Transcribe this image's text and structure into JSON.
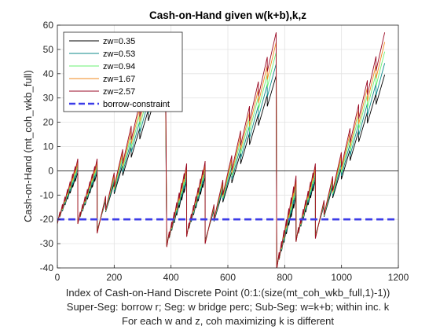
{
  "chart_data": {
    "type": "line",
    "title": "Cash-on-Hand given w(k+b),k,z",
    "xlabel_lines": [
      "Index of Cash-on-Hand Discrete Point (0:1:(size(mt_coh_wkb_full,1)-1))",
      "Super-Seg: borrow r; Seg: w bridge perc; Sub-Seg: w=k+b; within inc. k",
      "For each w and z, coh maximizing k is different"
    ],
    "ylabel": "Cash-on-Hand (mt_coh_wkb_full)",
    "xlim": [
      0,
      1200
    ],
    "ylim": [
      -40,
      60
    ],
    "xticks": [
      0,
      200,
      400,
      600,
      800,
      1000,
      1200
    ],
    "yticks": [
      -40,
      -30,
      -20,
      -10,
      0,
      10,
      20,
      30,
      40,
      50,
      60
    ],
    "grid": true,
    "legend_position": "top-left",
    "zero_line": 0,
    "segment_inner_count": 8,
    "borrow_constraint": -20,
    "series": [
      {
        "name": "zw=0.35",
        "color": "#000000",
        "scale": 0.78
      },
      {
        "name": "zw=0.53",
        "color": "#0d8a8a",
        "scale": 0.84
      },
      {
        "name": "zw=0.94",
        "color": "#69f071",
        "scale": 0.9
      },
      {
        "name": "zw=1.67",
        "color": "#f28a1e",
        "scale": 0.95
      },
      {
        "name": "zw=2.57",
        "color": "#9a0a24",
        "scale": 1.0
      }
    ],
    "segments": [
      {
        "x_start": 0,
        "x_end": 72,
        "y_start": -20,
        "y_end": 5
      },
      {
        "x_start": 72,
        "x_end": 140,
        "y_start": -20,
        "y_end": 5
      },
      {
        "x_start": 140,
        "x_end": 380,
        "y_start": -20,
        "y_end": 57
      },
      {
        "x_start": 385,
        "x_end": 455,
        "y_start": -29,
        "y_end": 3
      },
      {
        "x_start": 455,
        "x_end": 520,
        "y_start": -25,
        "y_end": 4
      },
      {
        "x_start": 520,
        "x_end": 770,
        "y_start": -24,
        "y_end": 57
      },
      {
        "x_start": 772,
        "x_end": 840,
        "y_start": -38,
        "y_end": -2
      },
      {
        "x_start": 840,
        "x_end": 908,
        "y_start": -27,
        "y_end": 3
      },
      {
        "x_start": 908,
        "x_end": 1152,
        "y_start": -22,
        "y_end": 57
      }
    ],
    "legend_entries": [
      {
        "name": "zw=0.35",
        "color": "#000000",
        "style": "solid"
      },
      {
        "name": "zw=0.53",
        "color": "#0d8a8a",
        "style": "solid"
      },
      {
        "name": "zw=0.94",
        "color": "#69f071",
        "style": "solid"
      },
      {
        "name": "zw=1.67",
        "color": "#f28a1e",
        "style": "solid"
      },
      {
        "name": "zw=2.57",
        "color": "#9a0a24",
        "style": "solid"
      },
      {
        "name": "borrow-constraint",
        "color": "#3c3ce8",
        "style": "dashed"
      }
    ]
  }
}
